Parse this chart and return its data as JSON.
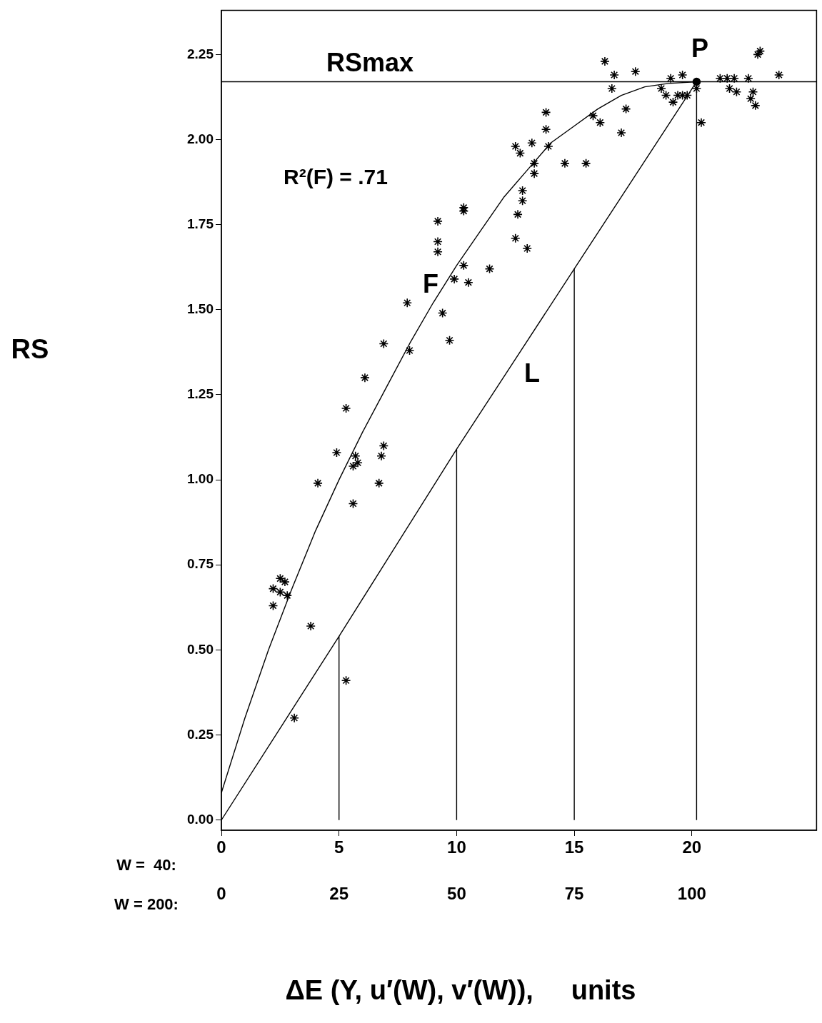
{
  "chart_data": {
    "type": "scatter",
    "xlabel": "ΔE (Y, u′(W), v′(W)),     units",
    "xlim": [
      0,
      25.3
    ],
    "xticks": [
      0,
      5,
      10,
      15,
      20
    ],
    "x2lim": [
      0,
      126.5
    ],
    "x2ticks": [
      0,
      25,
      50,
      75,
      100
    ],
    "ylim": [
      -0.03,
      2.38
    ],
    "yticks": [
      {
        "value": 0,
        "label": "0.00"
      },
      {
        "value": 0.25,
        "label": "0.25"
      },
      {
        "value": 0.5,
        "label": "0.50"
      },
      {
        "value": 0.75,
        "label": "0.75"
      },
      {
        "value": 1,
        "label": "1.00"
      },
      {
        "value": 1.25,
        "label": "1.25"
      },
      {
        "value": 1.5,
        "label": "1.50"
      },
      {
        "value": 1.75,
        "label": "1.75"
      },
      {
        "value": 2,
        "label": "2.00"
      },
      {
        "value": 2.25,
        "label": "2.25"
      }
    ],
    "grid": false,
    "legend": false,
    "marker": "cross",
    "annotations": [
      "R²(F) = .71",
      "W =  40:",
      "W = 200:",
      "RSmax",
      "P",
      "F",
      "L",
      "RS"
    ],
    "series": [
      {
        "color": "#000000",
        "x": [
          2.2,
          2.2,
          2.5,
          2.5,
          2.7,
          2.8,
          3.1,
          3.8,
          4.1,
          4.9,
          5.3,
          5.3,
          5.6,
          5.6,
          5.7,
          5.8,
          6.1,
          6.7,
          6.8,
          6.9,
          6.9,
          7.9,
          8.0,
          9.2,
          9.2,
          9.2,
          9.4,
          9.7,
          9.9,
          10.3,
          10.3,
          10.3,
          10.5,
          11.4,
          12.5,
          12.5,
          12.6,
          12.7,
          12.8,
          12.8,
          13.0,
          13.2,
          13.3,
          13.3,
          13.8,
          13.8,
          13.9,
          14.6,
          15.5,
          15.8,
          16.1,
          16.3,
          16.6,
          16.7,
          17.0,
          17.2,
          17.6,
          18.7,
          18.9,
          19.1,
          19.2,
          19.4,
          19.6,
          19.6,
          19.8,
          20.2,
          20.4,
          21.2,
          21.5,
          21.6,
          21.8,
          21.9,
          22.4,
          22.5,
          22.6,
          22.7,
          22.8,
          22.9,
          23.7
        ],
        "values": [
          0.68,
          0.63,
          0.67,
          0.71,
          0.7,
          0.66,
          0.3,
          0.57,
          0.99,
          1.08,
          1.21,
          0.41,
          0.93,
          1.04,
          1.07,
          1.05,
          1.3,
          0.99,
          1.07,
          1.1,
          1.4,
          1.52,
          1.38,
          1.76,
          1.67,
          1.7,
          1.49,
          1.41,
          1.59,
          1.63,
          1.79,
          1.8,
          1.58,
          1.62,
          1.98,
          1.71,
          1.78,
          1.96,
          1.82,
          1.85,
          1.68,
          1.99,
          1.93,
          1.9,
          2.08,
          2.03,
          1.98,
          1.93,
          1.93,
          2.07,
          2.05,
          2.23,
          2.15,
          2.19,
          2.02,
          2.09,
          2.2,
          2.15,
          2.13,
          2.18,
          2.11,
          2.13,
          2.13,
          2.19,
          2.13,
          2.15,
          2.05,
          2.18,
          2.18,
          2.15,
          2.18,
          2.14,
          2.18,
          2.12,
          2.14,
          2.1,
          2.25,
          2.26,
          2.19
        ]
      },
      {
        "type": "line",
        "marker": "none",
        "color": "#000000",
        "x": [
          0,
          1,
          2,
          3,
          4,
          5,
          6,
          7,
          8,
          9,
          10,
          11,
          12,
          13,
          14,
          15,
          16,
          17,
          18,
          19,
          20.2,
          25.3
        ],
        "values": [
          0.08,
          0.3,
          0.5,
          0.68,
          0.85,
          1.0,
          1.14,
          1.27,
          1.4,
          1.52,
          1.63,
          1.73,
          1.83,
          1.91,
          1.99,
          2.04,
          2.09,
          2.13,
          2.155,
          2.165,
          2.17,
          2.17
        ]
      },
      {
        "type": "line",
        "marker": "none",
        "color": "#000000",
        "x": [
          0,
          5,
          10,
          15,
          20.2
        ],
        "values": [
          0,
          0.54,
          1.09,
          1.62,
          2.17
        ]
      },
      {
        "type": "line",
        "marker": "none",
        "color": "#000000",
        "x": [
          5,
          5
        ],
        "values": [
          0,
          0.54
        ]
      },
      {
        "type": "line",
        "marker": "none",
        "color": "#000000",
        "x": [
          10,
          10
        ],
        "values": [
          0,
          1.09
        ]
      },
      {
        "type": "line",
        "marker": "none",
        "color": "#000000",
        "x": [
          15,
          15
        ],
        "values": [
          0,
          1.62
        ]
      },
      {
        "type": "line",
        "marker": "none",
        "color": "#000000",
        "x": [
          20.2,
          20.2
        ],
        "values": [
          0,
          2.17
        ]
      },
      {
        "type": "line",
        "marker": "none",
        "color": "#000000",
        "x": [
          0,
          20.2
        ],
        "values": [
          2.17,
          2.17
        ]
      },
      {
        "marker": "circle",
        "color": "#000000",
        "x": [
          20.2
        ],
        "values": [
          2.17
        ]
      }
    ]
  }
}
